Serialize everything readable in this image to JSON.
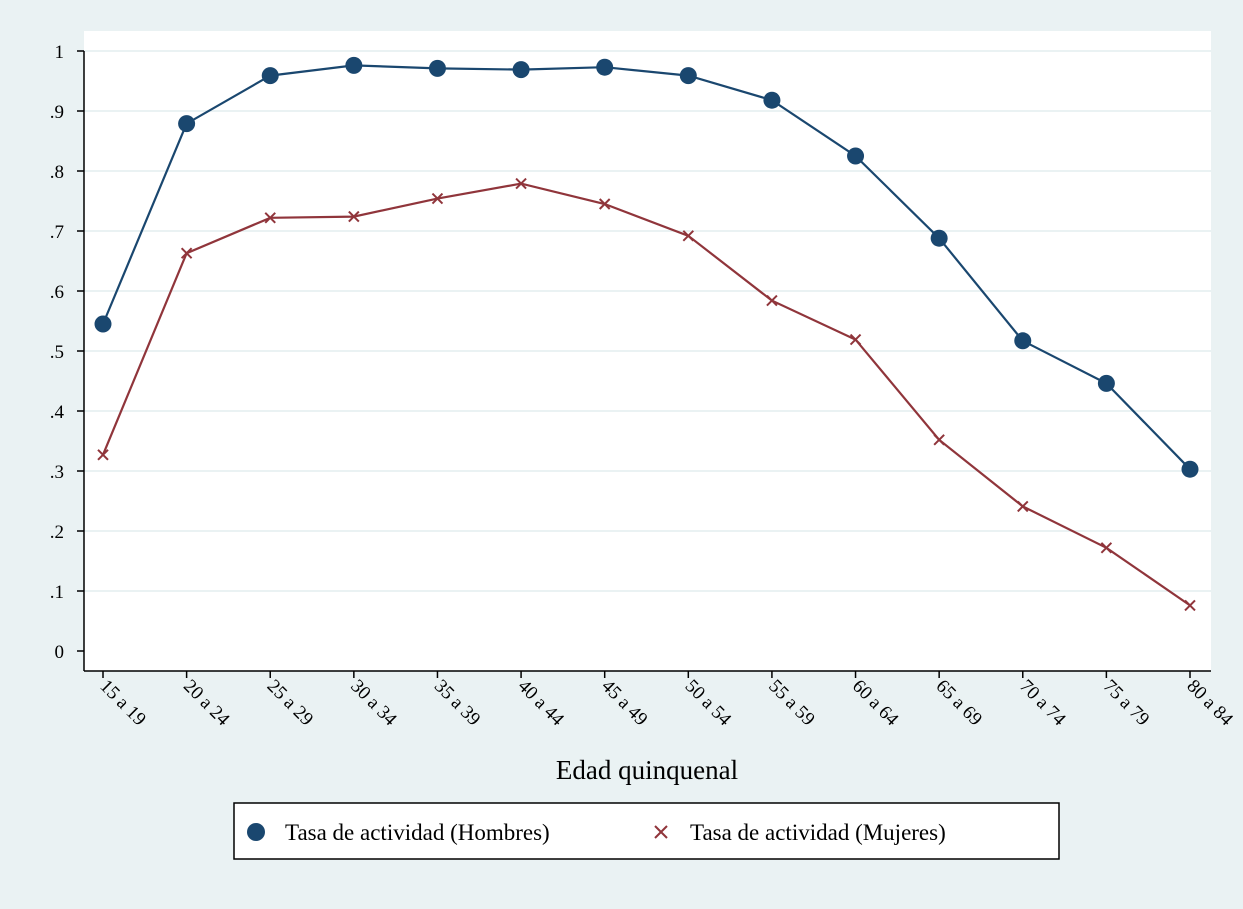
{
  "chart_data": {
    "type": "line",
    "title": "",
    "xlabel": "Edad quinquenal",
    "ylabel": "",
    "categories": [
      "15 a 19",
      "20 a 24",
      "25 a 29",
      "30 a 34",
      "35 a 39",
      "40 a 44",
      "45 a 49",
      "50 a 54",
      "55 a 59",
      "60 a 64",
      "65 a 69",
      "70 a 74",
      "75 a 79",
      "80 a 84"
    ],
    "ylim": [
      0,
      1
    ],
    "yticks": [
      {
        "value": 0,
        "label": "0"
      },
      {
        "value": 0.1,
        "label": ".1"
      },
      {
        "value": 0.2,
        "label": ".2"
      },
      {
        "value": 0.3,
        "label": ".3"
      },
      {
        "value": 0.4,
        "label": ".4"
      },
      {
        "value": 0.5,
        "label": ".5"
      },
      {
        "value": 0.6,
        "label": ".6"
      },
      {
        "value": 0.7,
        "label": ".7"
      },
      {
        "value": 0.8,
        "label": ".8"
      },
      {
        "value": 0.9,
        "label": ".9"
      },
      {
        "value": 1,
        "label": "1"
      }
    ],
    "grid": true,
    "legend_position": "bottom",
    "series": [
      {
        "name": "Tasa de actividad (Hombres)",
        "marker": "circle",
        "color": "#1a476f",
        "values": [
          0.545,
          0.879,
          0.959,
          0.976,
          0.971,
          0.969,
          0.973,
          0.959,
          0.918,
          0.825,
          0.688,
          0.517,
          0.446,
          0.303
        ]
      },
      {
        "name": "Tasa de actividad (Mujeres)",
        "marker": "x",
        "color": "#90353b",
        "values": [
          0.327,
          0.663,
          0.722,
          0.724,
          0.754,
          0.779,
          0.745,
          0.692,
          0.584,
          0.519,
          0.352,
          0.241,
          0.172,
          0.076
        ]
      }
    ]
  },
  "colors": {
    "background": "#eaf2f3",
    "plot_area": "#ffffff",
    "gridline": "#eaf2f3"
  }
}
